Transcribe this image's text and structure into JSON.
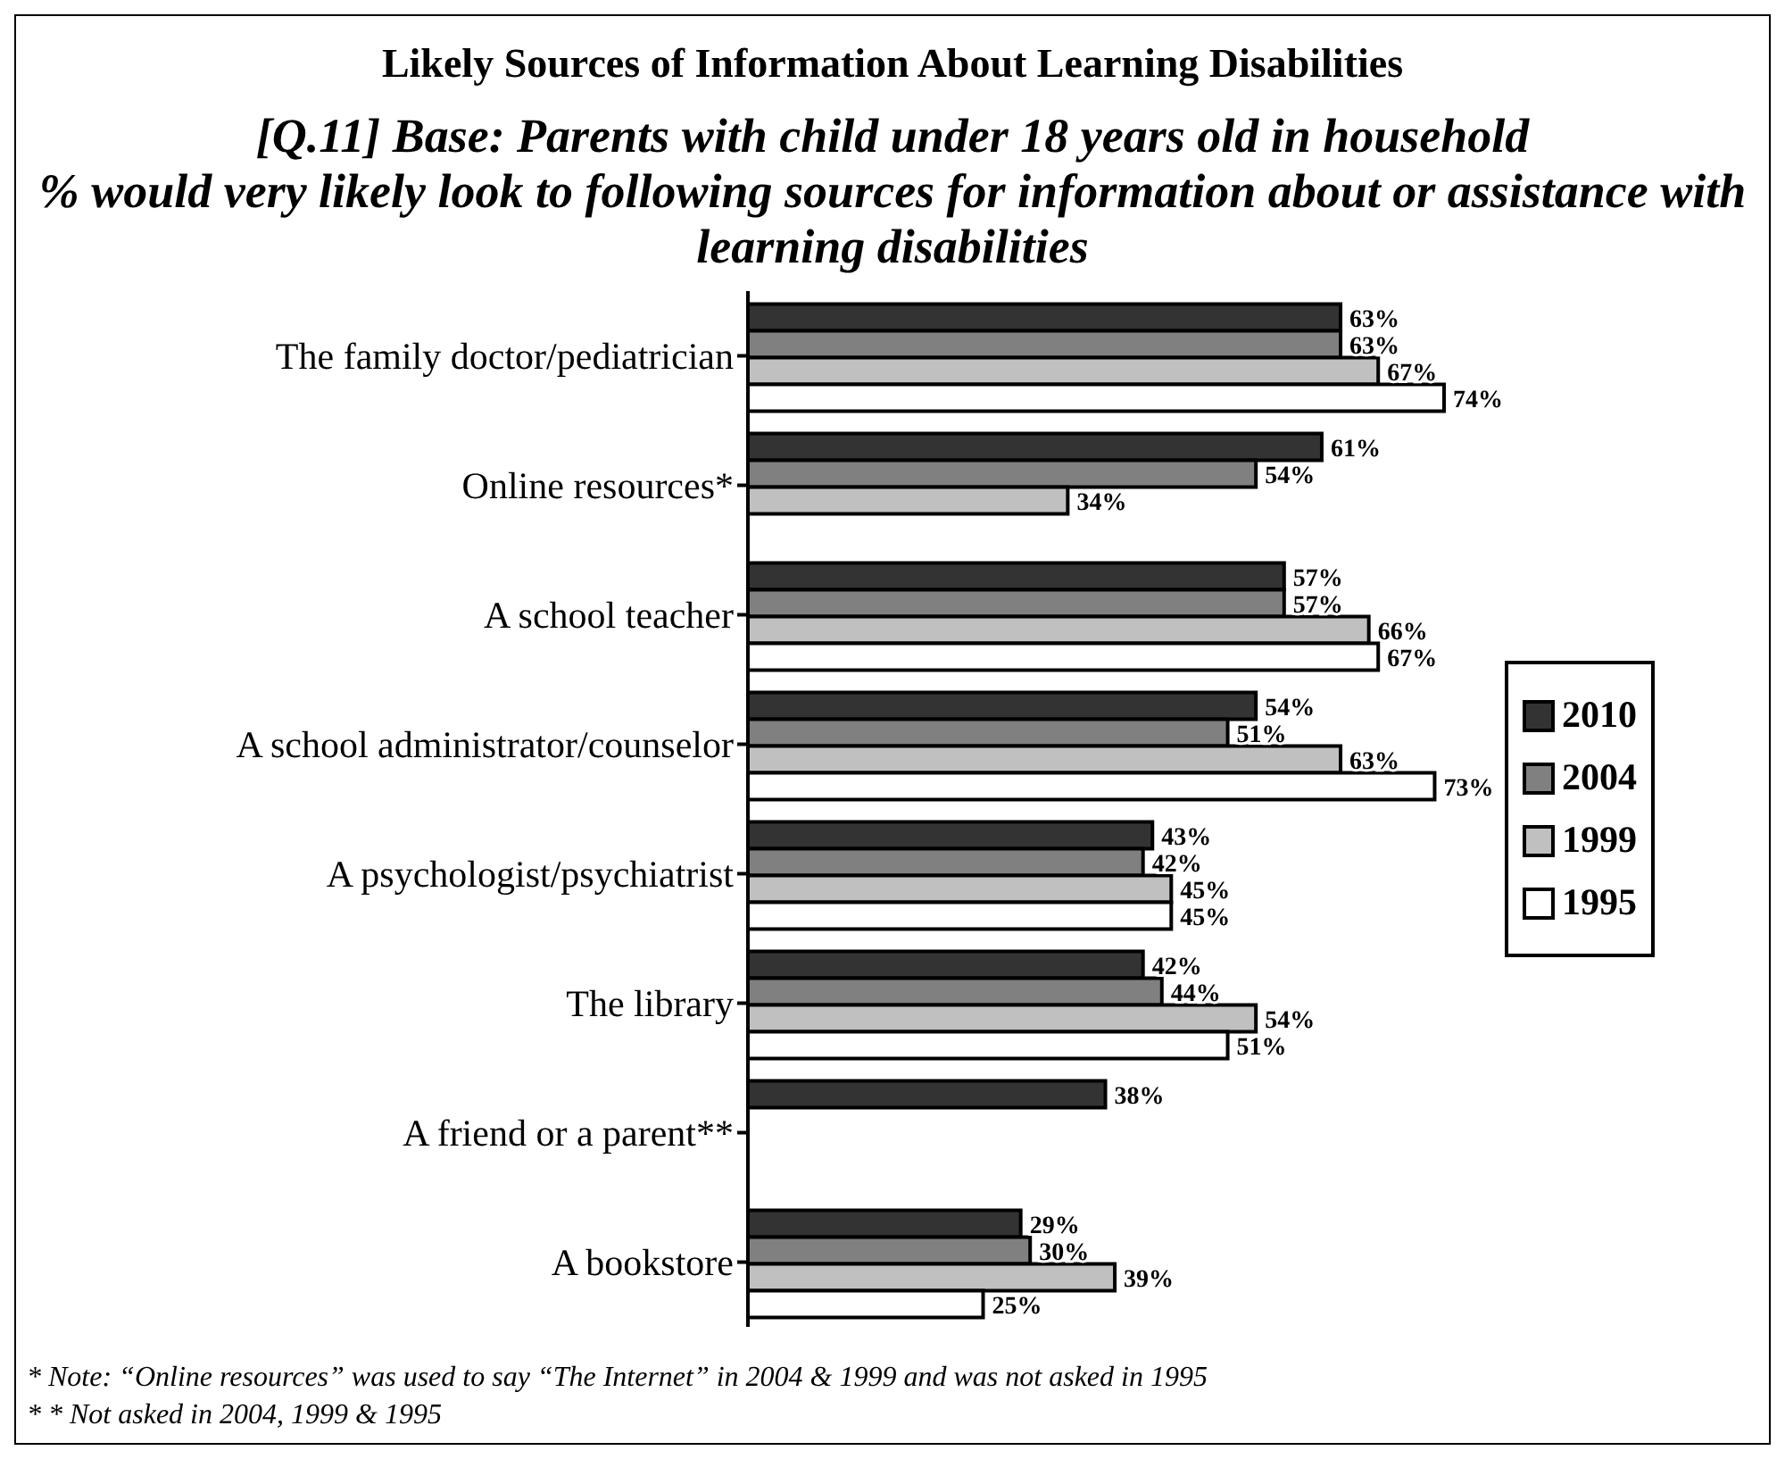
{
  "chart_data": {
    "type": "bar",
    "orientation": "horizontal",
    "title": "Likely Sources of Information About Learning Disabilities",
    "subtitle": "[Q.11] Base: Parents with child under 18 years old in household\n% would very likely look to following sources for information about or assistance with learning disabilities",
    "categories": [
      "The family doctor/pediatrician",
      "Online resources*",
      "A school teacher",
      "A school administrator/counselor",
      "A psychologist/psychiatrist",
      "The library",
      "A friend or a parent**",
      "A bookstore"
    ],
    "series": [
      {
        "name": "2010",
        "color": "#333333",
        "values": [
          63,
          61,
          57,
          54,
          43,
          42,
          38,
          29
        ],
        "value_labels": [
          "63%",
          "61%",
          "57%",
          "54%",
          "43%",
          "42%",
          "38%",
          "29%"
        ]
      },
      {
        "name": "2004",
        "color": "#808080",
        "values": [
          63,
          54,
          57,
          51,
          42,
          44,
          null,
          30
        ],
        "value_labels": [
          "63%",
          "54%",
          "57%",
          "51%",
          "42%",
          "44%",
          null,
          "30%"
        ]
      },
      {
        "name": "1999",
        "color": "#c0c0c0",
        "values": [
          67,
          34,
          66,
          63,
          45,
          54,
          null,
          39
        ],
        "value_labels": [
          "67%",
          "34%",
          "66%",
          "63%",
          "45%",
          "54%",
          null,
          "39%"
        ]
      },
      {
        "name": "1995",
        "color": "#ffffff",
        "values": [
          74,
          null,
          67,
          73,
          45,
          51,
          null,
          25
        ],
        "value_labels": [
          "74%",
          null,
          "67%",
          "73%",
          "45%",
          "51%",
          null,
          "25%"
        ]
      }
    ],
    "legend": "right",
    "grid": false,
    "annotations": [
      "* Note: “Online resources” was used to say “The Internet” in 2004 & 1999 and was not asked in 1995",
      "* * Not asked in 2004, 1999 & 1995"
    ]
  }
}
